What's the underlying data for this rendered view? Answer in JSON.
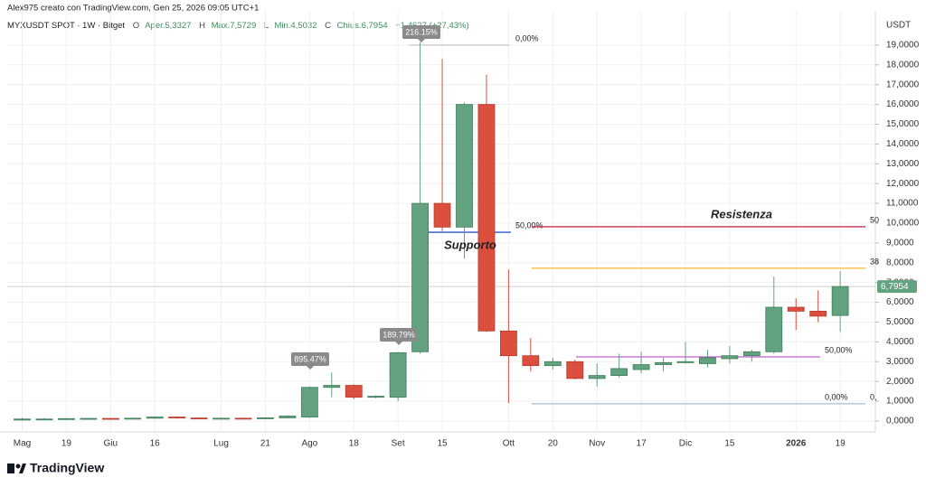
{
  "header": {
    "byline": "Alex975 creato con TradingView.com, Gen 25, 2026 09:05 UTC+1",
    "symbol": "MYXUSDT SPOT · 1W · Bitget",
    "ohlc": [
      "O",
      "Aper.5,3327",
      "H",
      "Max.7,5729",
      "L",
      "Min.4,5032",
      "C",
      "Chius.6,7954",
      "+1,4627 (+27,43%)"
    ]
  },
  "brand": "TradingView",
  "chart_data": {
    "type": "candlestick",
    "y_label": "USDT",
    "categories": [
      "Mag",
      null,
      "19",
      null,
      "Giu",
      null,
      "16",
      null,
      null,
      "Lug",
      null,
      "21",
      null,
      "Ago",
      null,
      "18",
      null,
      "Set",
      null,
      "15",
      null,
      null,
      "Ott",
      null,
      "20",
      null,
      "Nov",
      null,
      "17",
      null,
      "Dic",
      null,
      "15",
      null,
      null,
      "2026",
      null,
      "19"
    ],
    "open": [
      0.05,
      0.1,
      0.1,
      0.12,
      0.13,
      0.12,
      0.14,
      0.2,
      0.15,
      0.12,
      0.14,
      0.13,
      0.16,
      0.2,
      1.7,
      1.8,
      1.2,
      1.2,
      3.5,
      11.0,
      9.8,
      16.0,
      4.55,
      3.3,
      2.8,
      3.0,
      2.15,
      2.3,
      2.6,
      2.85,
      2.95,
      2.9,
      3.15,
      3.3,
      3.5,
      5.75,
      5.55,
      5.3327
    ],
    "high": [
      0.15,
      0.15,
      0.15,
      0.16,
      0.16,
      0.17,
      0.24,
      0.22,
      0.18,
      0.17,
      0.17,
      0.2,
      0.3,
      1.75,
      2.45,
      1.85,
      1.3,
      3.5,
      19.15,
      18.3,
      16.1,
      17.5,
      7.65,
      4.2,
      3.2,
      3.1,
      2.9,
      3.4,
      3.5,
      3.2,
      4.0,
      3.6,
      3.8,
      3.6,
      7.3,
      6.2,
      6.6,
      7.5729
    ],
    "low": [
      0.02,
      0.07,
      0.07,
      0.09,
      0.09,
      0.09,
      0.12,
      0.12,
      0.09,
      0.09,
      0.1,
      0.11,
      0.14,
      0.15,
      1.2,
      1.1,
      1.15,
      1.0,
      3.4,
      9.6,
      8.2,
      4.5,
      0.9,
      2.5,
      2.6,
      2.1,
      1.75,
      2.2,
      2.4,
      2.5,
      2.9,
      2.7,
      2.9,
      3.0,
      3.4,
      4.6,
      5.0,
      4.5032
    ],
    "close": [
      0.1,
      0.1,
      0.12,
      0.13,
      0.12,
      0.14,
      0.2,
      0.15,
      0.12,
      0.14,
      0.13,
      0.16,
      0.25,
      1.7,
      1.8,
      1.2,
      1.25,
      3.45,
      11.0,
      9.8,
      16.0,
      4.55,
      3.3,
      2.8,
      3.0,
      2.15,
      2.3,
      2.65,
      2.85,
      2.95,
      3.0,
      3.2,
      3.3,
      3.5,
      5.75,
      5.55,
      5.3,
      6.7954
    ],
    "up_color": "#62a27f",
    "down_color": "#dc4f3e",
    "ylim": [
      -0.55,
      20.73
    ],
    "yticks": [
      {
        "value": 0,
        "label": "0,0000"
      },
      {
        "value": 1,
        "label": "1,0000"
      },
      {
        "value": 2,
        "label": "2,0000"
      },
      {
        "value": 3,
        "label": "3,0000"
      },
      {
        "value": 4,
        "label": "4,0000"
      },
      {
        "value": 5,
        "label": "5,0000"
      },
      {
        "value": 6,
        "label": "6,0000"
      },
      {
        "value": 7,
        "label": "7,0000"
      },
      {
        "value": 8,
        "label": "8,0000"
      },
      {
        "value": 9,
        "label": "9,0000"
      },
      {
        "value": 10,
        "label": "10,0000"
      },
      {
        "value": 11,
        "label": "11,0000"
      },
      {
        "value": 12,
        "label": "12,0000"
      },
      {
        "value": 13,
        "label": "13,0000"
      },
      {
        "value": 14,
        "label": "14,0000"
      },
      {
        "value": 15,
        "label": "15,0000"
      },
      {
        "value": 16,
        "label": "16,0000"
      },
      {
        "value": 17,
        "label": "17,0000"
      },
      {
        "value": 18,
        "label": "18,0000"
      },
      {
        "value": 19,
        "label": "19,0000"
      }
    ],
    "grid": true,
    "last_price_label": "6,7954",
    "levels": [
      {
        "value": 19.0,
        "color": "#c8c8c8",
        "label": "0,00%"
      },
      {
        "value": 9.54,
        "color": "#2f55c9",
        "label": "50,00%"
      },
      {
        "value": 9.82,
        "color": "#c2334d",
        "edge_label": "50"
      },
      {
        "value": 7.72,
        "color": "#f5b731",
        "edge_label": "38"
      },
      {
        "value": 3.24,
        "color": "#c75cd1",
        "label": "50,00%"
      },
      {
        "value": 0.87,
        "color": "#a9bccd",
        "label": "0,00%",
        "edge_label": "0,"
      }
    ],
    "notes": [
      {
        "text": "Supporto",
        "color": "#2f55c9"
      },
      {
        "text": "Resistenza",
        "color": "#d2334f"
      }
    ],
    "callouts": [
      "895.47%",
      "189.79%",
      "216.15%"
    ]
  }
}
